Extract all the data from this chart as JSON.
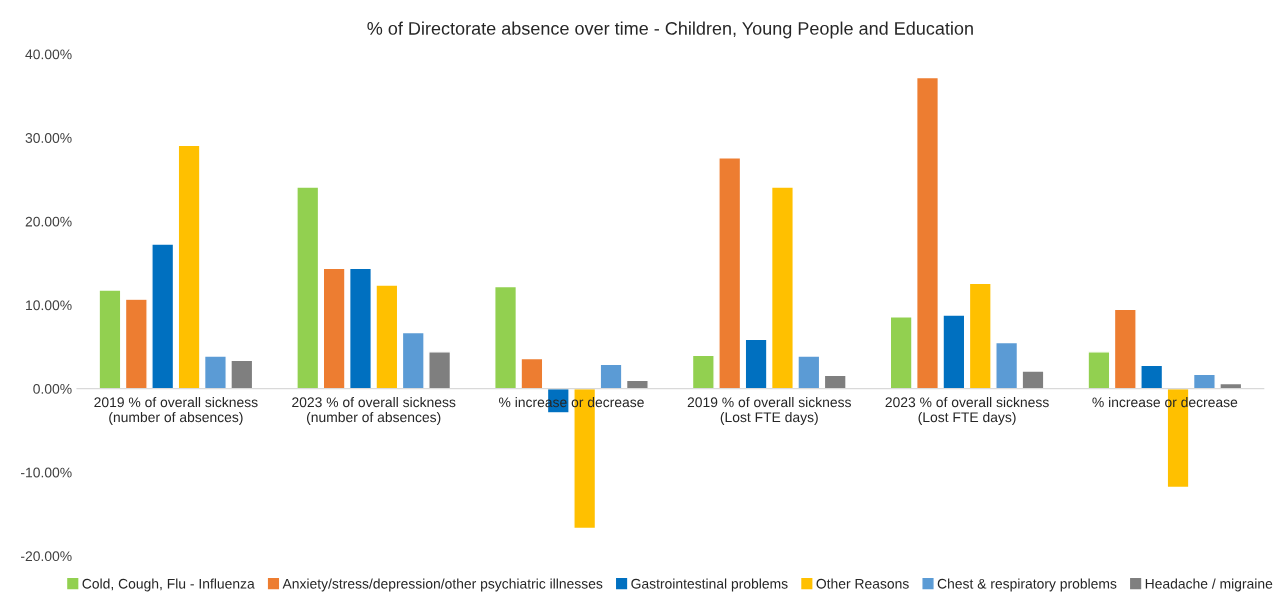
{
  "chart_data": {
    "type": "bar",
    "title": "% of Directorate absence over time - Children, Young People and Education",
    "categories": [
      "2019 % of overall sickness (number of absences)",
      "2023 % of overall sickness (number of absences)",
      "% increase or decrease",
      "2019 % of overall sickness (Lost FTE days)",
      "2023 % of overall sickness (Lost FTE days)",
      "% increase or decrease"
    ],
    "series": [
      {
        "name": "Cold, Cough, Flu - Influenza",
        "color": "#92d050",
        "values": [
          11.8,
          24.1,
          12.2,
          4.0,
          8.6,
          4.4
        ]
      },
      {
        "name": "Anxiety/stress/depression/other psychiatric illnesses",
        "color": "#ed7d31",
        "values": [
          10.7,
          14.4,
          3.6,
          27.6,
          37.2,
          9.5
        ]
      },
      {
        "name": "Gastrointestinal problems",
        "color": "#0070c0",
        "values": [
          17.3,
          14.4,
          -2.9,
          5.9,
          8.8,
          2.8
        ]
      },
      {
        "name": "Other Reasons",
        "color": "#ffc000",
        "values": [
          29.1,
          12.4,
          -16.7,
          24.1,
          12.6,
          -11.8
        ]
      },
      {
        "name": "Chest & respiratory problems",
        "color": "#5b9bd5",
        "values": [
          3.9,
          6.7,
          2.9,
          3.9,
          5.5,
          1.7
        ]
      },
      {
        "name": "Headache / migraine",
        "color": "#7f7f7f",
        "values": [
          3.4,
          4.4,
          1.0,
          1.6,
          2.1,
          0.6
        ]
      }
    ],
    "ylim": [
      -20,
      40
    ],
    "yticks": [
      {
        "value": -20,
        "label": "-20.00%"
      },
      {
        "value": -10,
        "label": "-10.00%"
      },
      {
        "value": 0,
        "label": "0.00%"
      },
      {
        "value": 10,
        "label": "10.00%"
      },
      {
        "value": 20,
        "label": "20.00%"
      },
      {
        "value": 30,
        "label": "30.00%"
      },
      {
        "value": 40,
        "label": "40.00%"
      }
    ],
    "grid": false,
    "legend": "bottom"
  }
}
